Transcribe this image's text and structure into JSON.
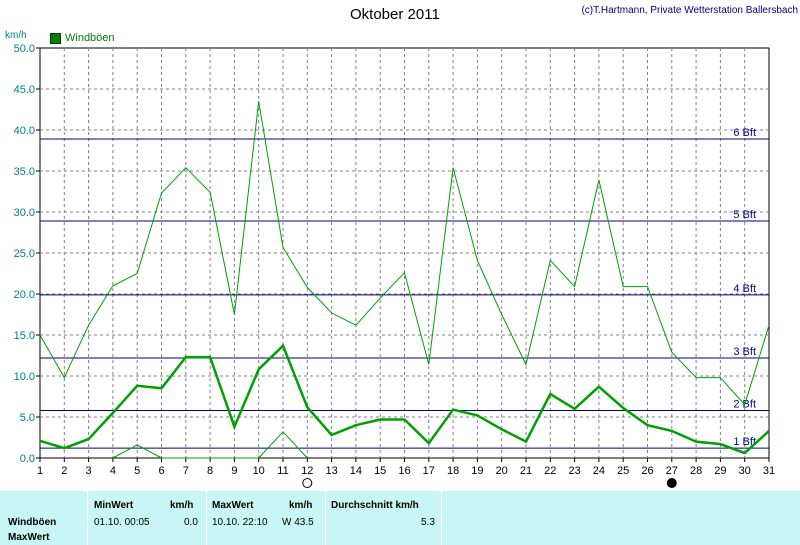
{
  "header": {
    "title": "Oktober 2011",
    "credit": "(c)T.Hartmann, Private Wetterstation Ballersbach",
    "unit": "km/h"
  },
  "legend": {
    "label": "Windböen",
    "color": "#008000"
  },
  "chart_data": {
    "type": "line",
    "title": "Oktober 2011",
    "ylabel": "km/h",
    "xlabel": "",
    "ylim": [
      0,
      50
    ],
    "yticks": [
      "0.0",
      "5.0",
      "10.0",
      "15.0",
      "20.0",
      "25.0",
      "30.0",
      "35.0",
      "40.0",
      "45.0",
      "50.0"
    ],
    "x": [
      1,
      2,
      3,
      4,
      5,
      6,
      7,
      8,
      9,
      10,
      11,
      12,
      13,
      14,
      15,
      16,
      17,
      18,
      19,
      20,
      21,
      22,
      23,
      24,
      25,
      26,
      27,
      28,
      29,
      30,
      31
    ],
    "grid": true,
    "series": [
      {
        "name": "Windböen max",
        "color": "#00a000",
        "values": [
          15,
          9.8,
          16.2,
          21,
          22.5,
          32.3,
          35.4,
          32.4,
          17.5,
          43.5,
          25.7,
          20.8,
          17.7,
          16.2,
          19.5,
          22.6,
          11.4,
          35.4,
          24.1,
          17.5,
          11.4,
          24.1,
          20.9,
          33.9,
          20.9,
          20.9,
          12.9,
          9.8,
          9.8,
          6.5,
          16.2
        ]
      },
      {
        "name": "Windböen Mittel",
        "color": "#00a000",
        "bold": true,
        "values": [
          2.1,
          1.2,
          2.3,
          5.5,
          8.8,
          8.5,
          12.3,
          12.3,
          3.8,
          10.8,
          13.7,
          6.2,
          2.8,
          4,
          4.7,
          4.7,
          1.8,
          5.9,
          5.2,
          3.5,
          2,
          7.8,
          6,
          8.7,
          6.1,
          4,
          3.3,
          2,
          1.7,
          0.6,
          3.3
        ]
      },
      {
        "name": "Windböen min",
        "points": [
          [
            4,
            0
          ],
          [
            5,
            1.6
          ],
          [
            6,
            0
          ],
          [
            10,
            0
          ],
          [
            11,
            3.2
          ],
          [
            12,
            0
          ]
        ]
      }
    ],
    "bft_lines": [
      {
        "label": "1 Bft",
        "value": 1.2
      },
      {
        "label": "2 Bft",
        "value": 5.8
      },
      {
        "label": "3 Bft",
        "value": 12.2
      },
      {
        "label": "4 Bft",
        "value": 19.9
      },
      {
        "label": "5 Bft",
        "value": 28.9
      },
      {
        "label": "6 Bft",
        "value": 38.9
      }
    ],
    "moon_markers": [
      {
        "day": 12,
        "phase": "full"
      },
      {
        "day": 27,
        "phase": "new"
      }
    ],
    "colors": {
      "line": "#00a000",
      "bft": "#000080",
      "axis_text": "#008080"
    }
  },
  "stats": {
    "headers": {
      "min": "MinWert",
      "min_unit": "km/h",
      "max": "MaxWert",
      "max_unit": "km/h",
      "avg": "Durchschnitt km/h"
    },
    "row": {
      "label": "Windböen",
      "min_time": "01.10.  00:05",
      "min_val": "0.0",
      "max_time": "10.10.  22:10",
      "max_val": "W 43.5",
      "avg_val": "5.3"
    },
    "footer_label": "MaxWert"
  }
}
